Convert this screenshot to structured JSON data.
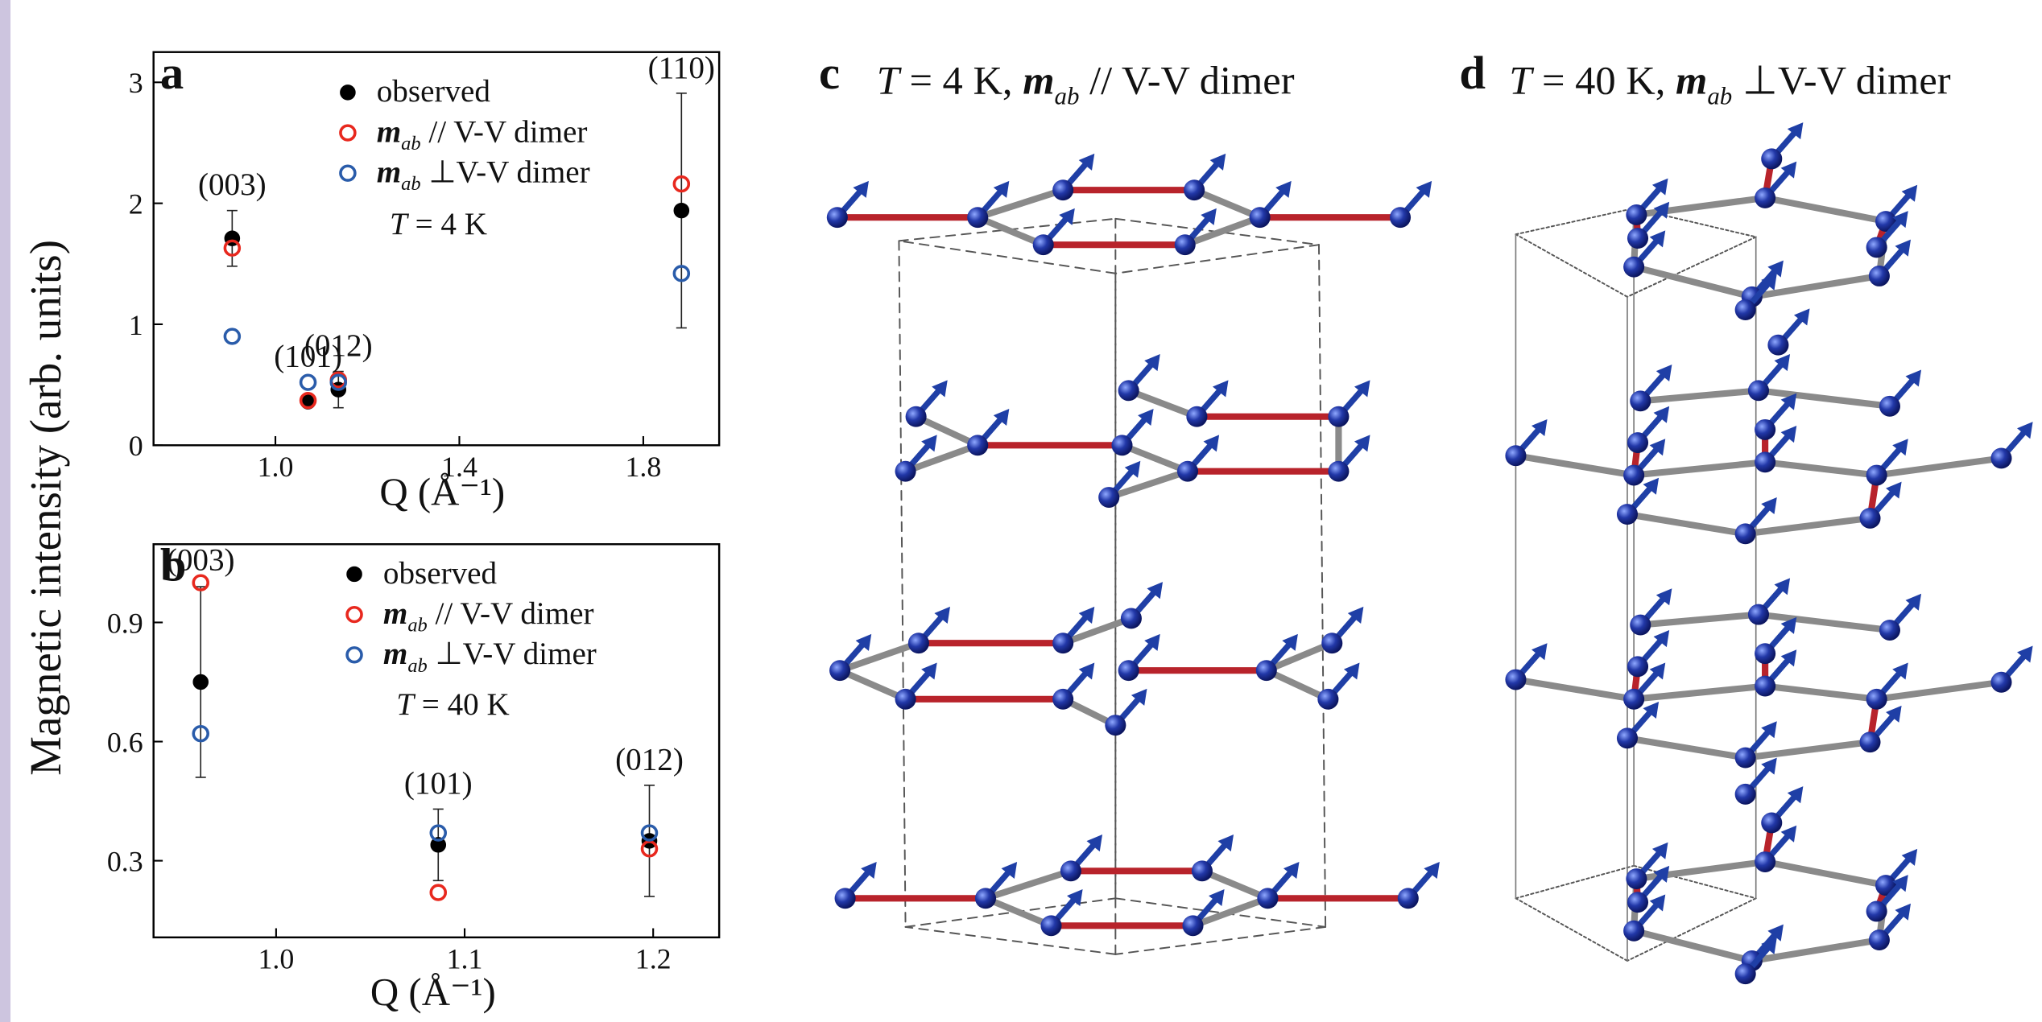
{
  "chart_data": [
    {
      "type": "scatter",
      "panel_label": "a",
      "ylabel": "Magnetic intensity (arb. units)",
      "xlabel": "Q (Å⁻¹)",
      "xlim": [
        0.735,
        1.965
      ],
      "ylim": [
        0,
        3.25
      ],
      "xticks": [
        {
          "value": 1,
          "label": "1.0"
        },
        1.4,
        1.8
      ],
      "yticks": [
        0,
        1,
        2,
        3
      ],
      "x": [
        0.906,
        1.071,
        1.137,
        1.883
      ],
      "point_labels": [
        "(003)",
        "(101)",
        "(012)",
        "(110)"
      ],
      "series": [
        {
          "name": "observed",
          "color": "#000000",
          "marker": "filled",
          "values": [
            1.71,
            0.36,
            0.46,
            1.94
          ],
          "errors": [
            0.23,
            null,
            0.15,
            0.97
          ]
        },
        {
          "label_symbol": "m",
          "label_subscript": "ab",
          "name": " // V-V dimer",
          "color": "#e8281e",
          "marker": "open",
          "values": [
            1.63,
            0.37,
            0.54,
            2.16
          ]
        },
        {
          "label_symbol": "m",
          "label_subscript": "ab",
          "name": " ⊥V-V dimer",
          "color": "#2a5caa",
          "marker": "open",
          "values": [
            0.9,
            0.52,
            0.52,
            1.42
          ]
        }
      ],
      "annotation": {
        "symbol": "T",
        "text": " = 4 K"
      }
    },
    {
      "type": "scatter",
      "panel_label": "b",
      "xlabel": "Q (Å⁻¹)",
      "xlim": [
        0.935,
        1.235
      ],
      "ylim": [
        0.107,
        1.097
      ],
      "xticks": [
        {
          "value": 1,
          "label": "1.0"
        },
        1.1,
        1.2
      ],
      "yticks": [
        0.3,
        0.6,
        0.9
      ],
      "x": [
        0.96,
        1.086,
        1.198
      ],
      "point_labels": [
        "(003)",
        "(101)",
        "(012)"
      ],
      "series": [
        {
          "name": "observed",
          "color": "#000000",
          "marker": "filled",
          "values": [
            0.75,
            0.34,
            0.35
          ],
          "errors": [
            0.24,
            0.09,
            0.14
          ]
        },
        {
          "label_symbol": "m",
          "label_subscript": "ab",
          "name": " // V-V dimer",
          "color": "#e8281e",
          "marker": "open",
          "values": [
            1.0,
            0.22,
            0.33
          ]
        },
        {
          "label_symbol": "m",
          "label_subscript": "ab",
          "name": " ⊥V-V dimer",
          "color": "#2a5caa",
          "marker": "open",
          "values": [
            0.62,
            0.37,
            0.37
          ]
        }
      ],
      "annotation": {
        "symbol": "T",
        "text": " = 40 K"
      }
    }
  ],
  "diagrams": [
    {
      "label": "c",
      "temperature_symbol": "T",
      "temperature": " = 4 K, ",
      "moment_symbol": "m",
      "moment_subscript": "ab",
      "relation": " // V-V dimer"
    },
    {
      "label": "d",
      "temperature_symbol": "T",
      "temperature": " = 40 K, ",
      "moment_symbol": "m",
      "moment_subscript": "ab",
      "relation": " ⊥V-V dimer"
    }
  ]
}
